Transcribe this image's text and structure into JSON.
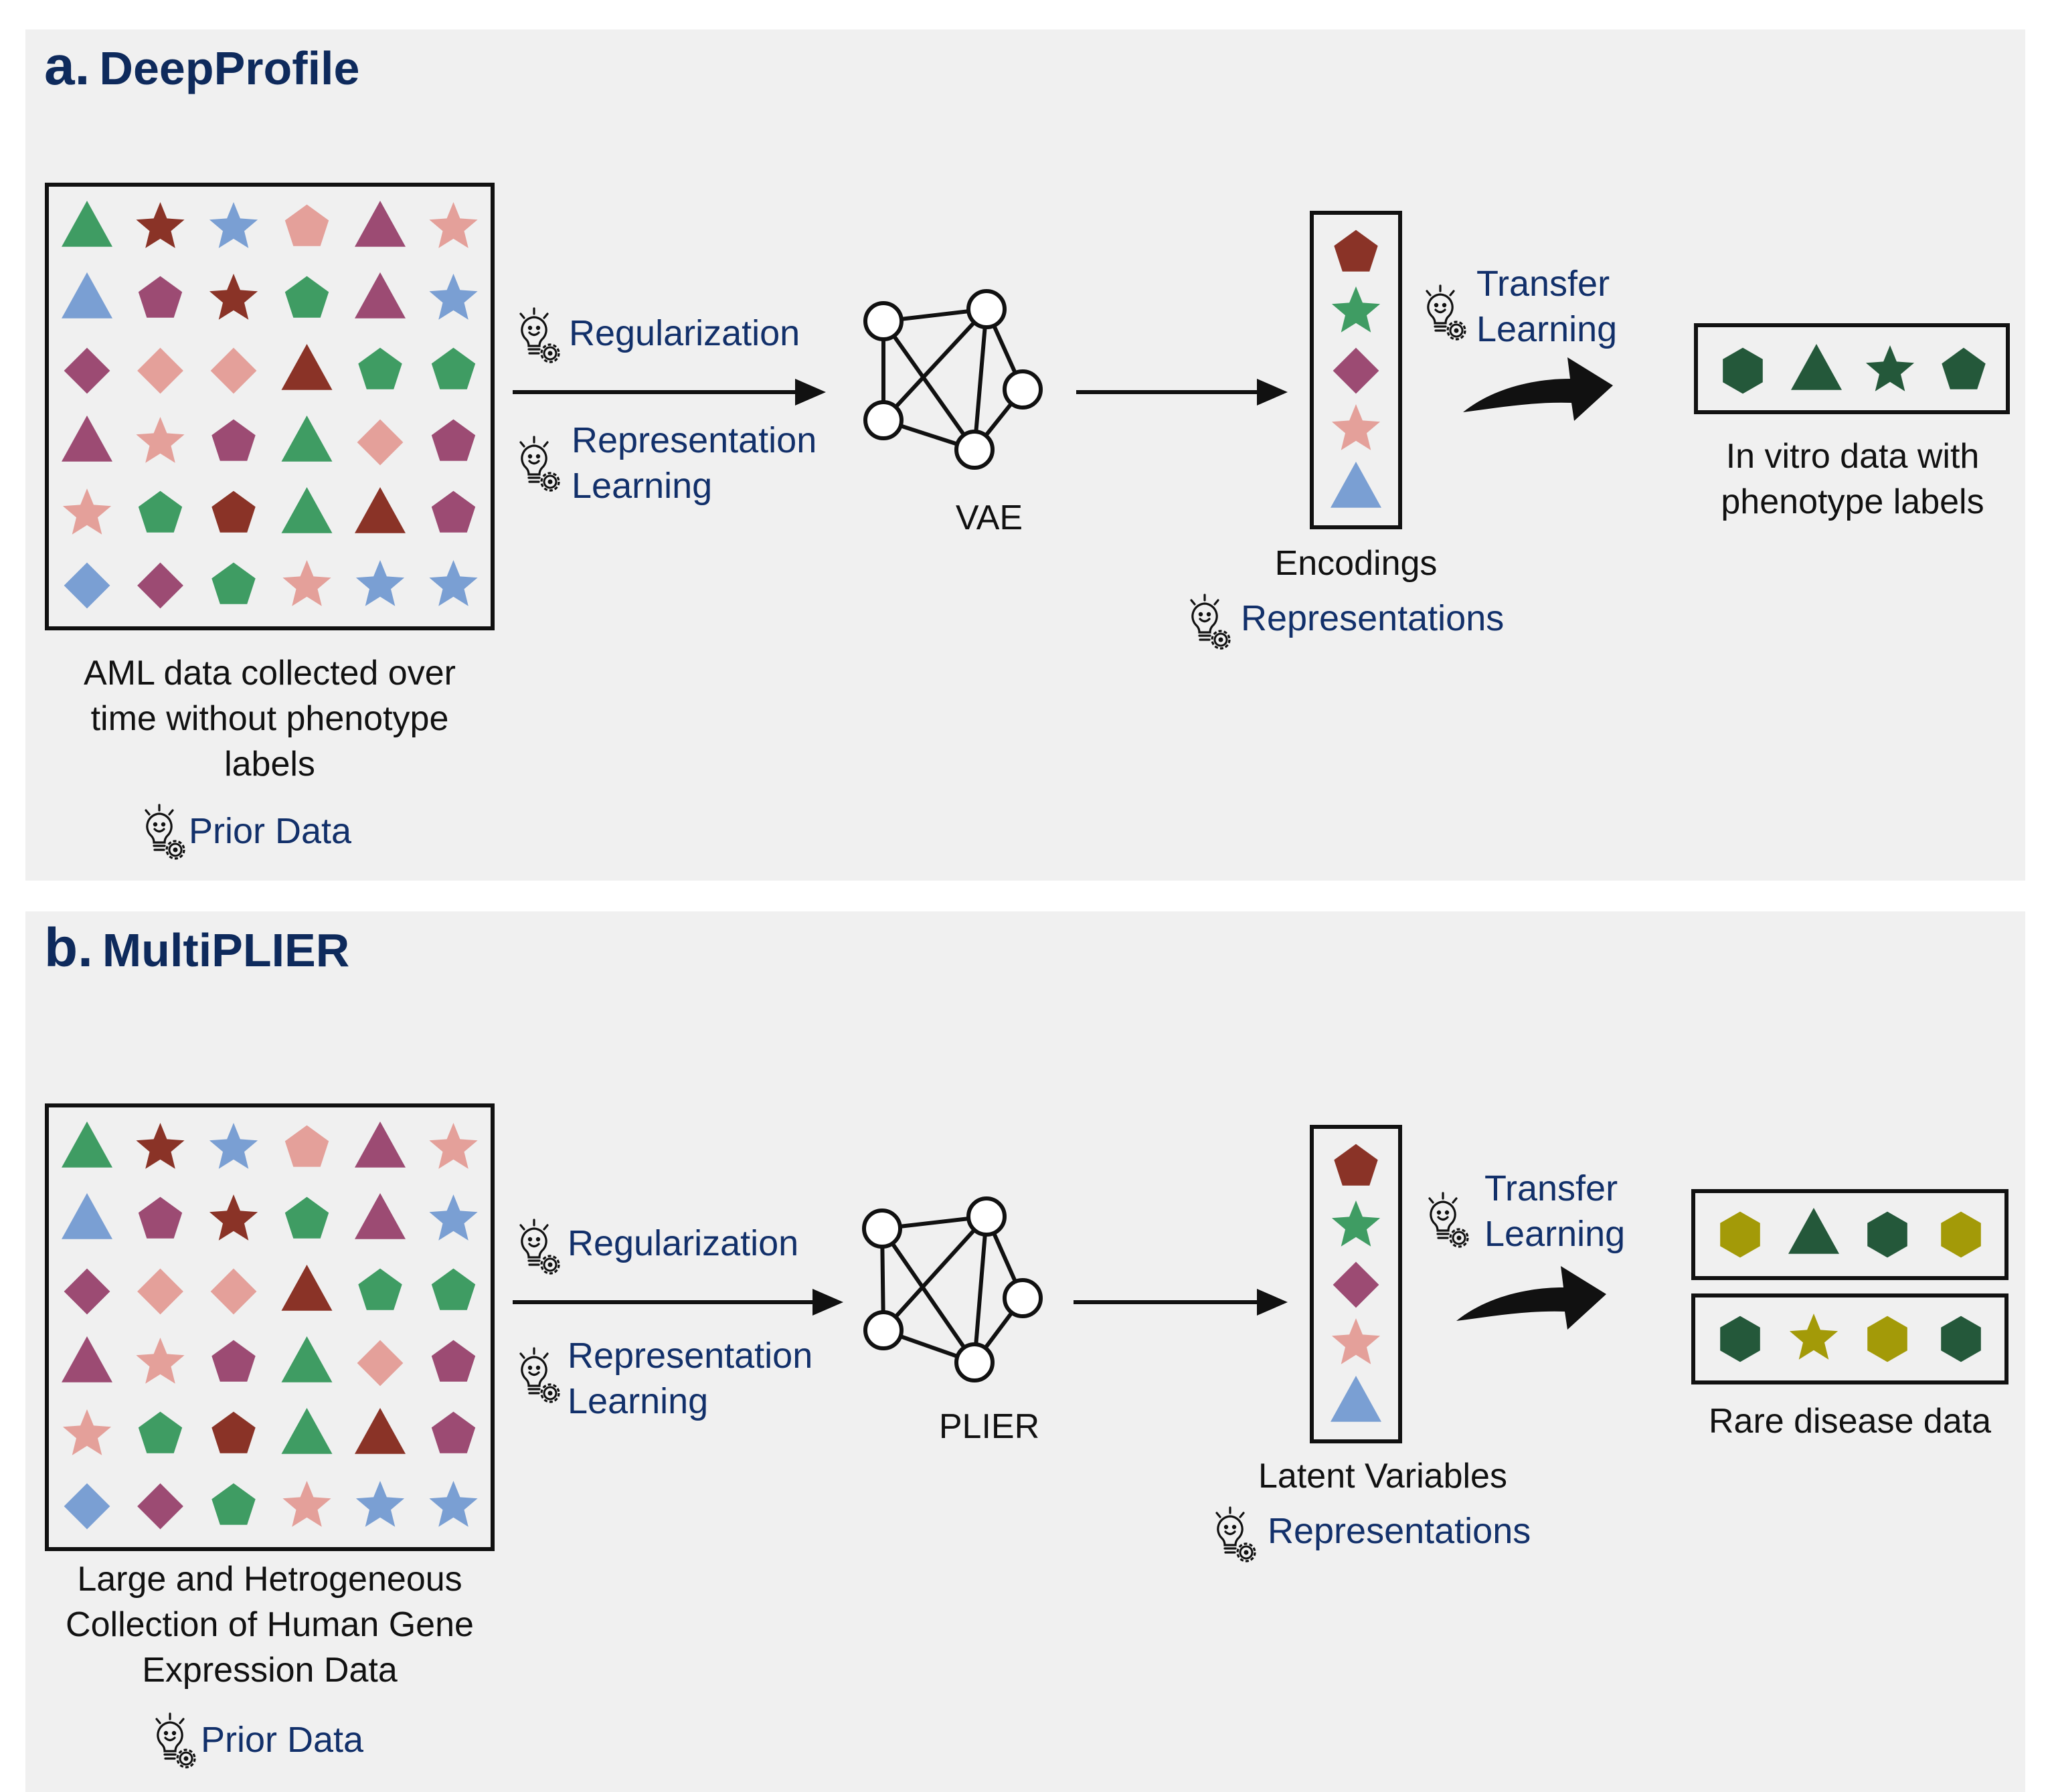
{
  "panels": [
    {
      "letter": "a.",
      "name": "DeepProfile",
      "data_label_lines": [
        "AML data collected over",
        "time without phenotype",
        "labels"
      ],
      "prior_data": "Prior Data",
      "regularization": "Regularization",
      "representation_learning_lines": [
        "Representation",
        "Learning"
      ],
      "model_label": "VAE",
      "encodings_label": "Encodings",
      "representations": "Representations",
      "transfer_learning_lines": [
        "Transfer",
        "Learning"
      ],
      "target_label_lines": [
        "In vitro data with",
        "phenotype labels"
      ]
    },
    {
      "letter": "b.",
      "name": "MultiPLIER",
      "data_label_lines": [
        "Large and Hetrogeneous",
        "Collection of Human Gene",
        "Expression Data"
      ],
      "prior_data": "Prior Data",
      "regularization": "Regularization",
      "representation_learning_lines": [
        "Representation",
        "Learning"
      ],
      "model_label": "PLIER",
      "encodings_label": "Latent Variables",
      "representations": "Representations",
      "transfer_learning_lines": [
        "Transfer",
        "Learning"
      ],
      "target_label_lines": [
        "Rare disease data"
      ]
    }
  ],
  "colors": {
    "title": "#0e2a5c",
    "concept_text": "#12306a",
    "green": "#3f9c63",
    "dark_red": "#8a3327",
    "blue": "#7a9fd3",
    "pink": "#e4a09a",
    "purple": "#9c4b73",
    "dark_green": "#24583a",
    "olive": "#a39a08"
  },
  "icon": "lightbulb-gear-icon",
  "data_grid": [
    [
      "green-triangle",
      "darkred-star",
      "blue-star",
      "pink-pentagon",
      "purple-triangle",
      "pink-star"
    ],
    [
      "blue-triangle",
      "purple-pentagon",
      "darkred-star",
      "green-pentagon",
      "purple-triangle",
      "blue-star"
    ],
    [
      "purple-diamond",
      "pink-diamond",
      "pink-diamond",
      "darkred-triangle",
      "green-pentagon",
      "green-pentagon"
    ],
    [
      "purple-triangle",
      "pink-star",
      "purple-pentagon",
      "green-triangle",
      "pink-diamond",
      "purple-pentagon"
    ],
    [
      "pink-star",
      "green-pentagon",
      "darkred-pentagon",
      "green-triangle",
      "darkred-triangle",
      "purple-pentagon"
    ],
    [
      "blue-diamond",
      "purple-diamond",
      "green-pentagon",
      "pink-star",
      "blue-star",
      "blue-star"
    ]
  ],
  "encoding_column": [
    "darkred-pentagon",
    "green-star",
    "purple-diamond",
    "pink-star",
    "blue-triangle"
  ],
  "target_rows_a": [
    [
      "darkgreen-hexagon",
      "darkgreen-triangle",
      "darkgreen-star",
      "darkgreen-pentagon"
    ]
  ],
  "target_rows_b": [
    [
      "olive-hexagon",
      "darkgreen-triangle",
      "darkgreen-hexagon",
      "olive-hexagon"
    ],
    [
      "darkgreen-hexagon",
      "olive-star",
      "olive-hexagon",
      "darkgreen-hexagon"
    ]
  ]
}
